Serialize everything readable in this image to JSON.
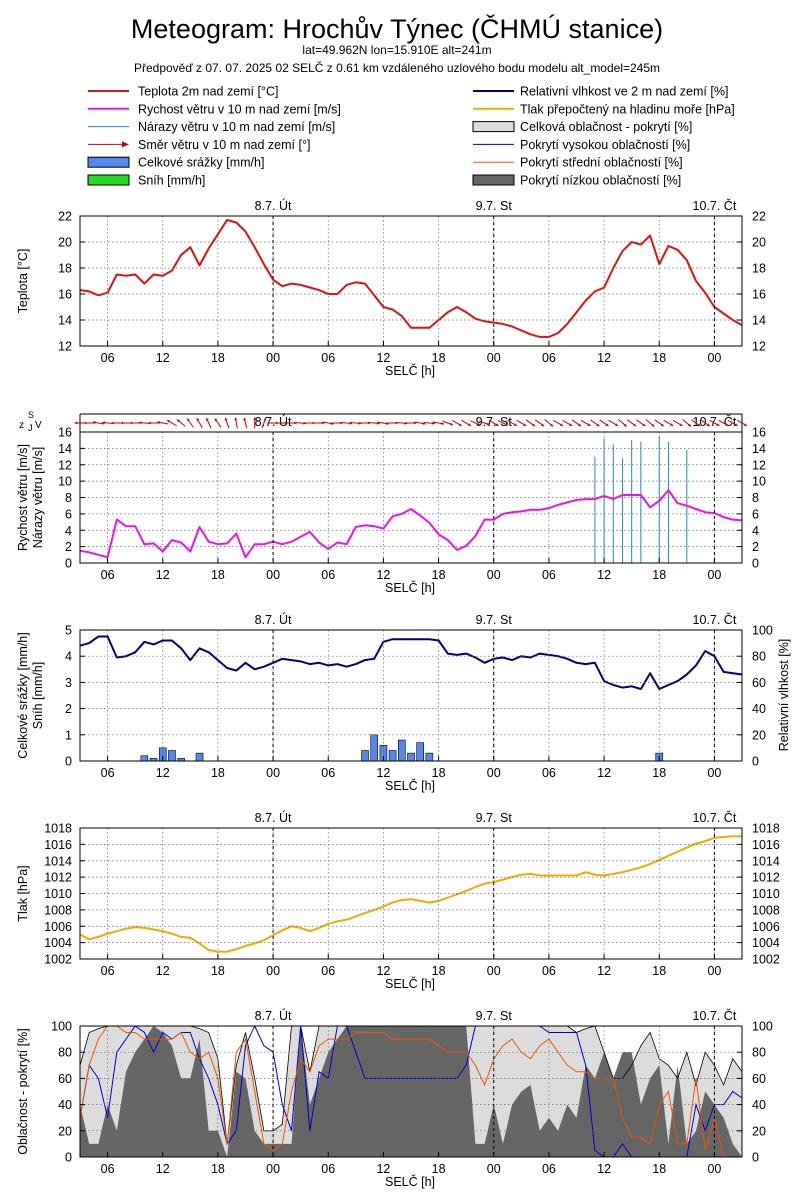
{
  "header": {
    "title": "Meteogram: Hrochův Týnec (ČHMÚ stanice)",
    "coords": "lat=49.962N lon=15.910E alt=241m",
    "forecast": "Předpověď z 07. 07. 2025 02 SELČ z 0.61 km vzdáleného uzlového bodu modelu alt_model=245m"
  },
  "colors": {
    "temp": "#dd1111",
    "wind": "#ee11ee",
    "gust": "#2288cc",
    "winddir": "#cc0000",
    "precip_fill": "#5588ee",
    "snow_fill": "#22dd22",
    "rh": "#000077",
    "pressure": "#eeaa00",
    "cloud_total": "#dcdcdc",
    "cloud_high": "#0000cc",
    "cloud_mid": "#ee5500",
    "cloud_low": "#666666"
  },
  "legend": {
    "left": [
      {
        "label": "Teplota 2m nad zemí [°C]",
        "kind": "line",
        "color": "#dd1111"
      },
      {
        "label": "Rychost větru v 10 m nad zemí [m/s]",
        "kind": "line",
        "color": "#ee11ee"
      },
      {
        "label": "Nárazy větru v 10 m nad zemí [m/s]",
        "kind": "thin",
        "color": "#2288cc"
      },
      {
        "label": "Směr větru v 10 m nad zemí [°]",
        "kind": "arrow",
        "color": "#cc0000"
      },
      {
        "label": "Celkové srážky [mm/h]",
        "kind": "box",
        "color": "#5588ee"
      },
      {
        "label": "Sníh [mm/h]",
        "kind": "box",
        "color": "#22dd22"
      }
    ],
    "right": [
      {
        "label": "Relativní vlhkost ve 2 m nad zemí [%]",
        "kind": "line",
        "color": "#000077"
      },
      {
        "label": "Tlak přepočtený na hladinu moře [hPa]",
        "kind": "line",
        "color": "#eeaa00"
      },
      {
        "label": "Celková oblačnost - pokrytí [%]",
        "kind": "box",
        "color": "#dcdcdc"
      },
      {
        "label": "Pokrytí vysokou oblačností [%]",
        "kind": "thin",
        "color": "#0000cc"
      },
      {
        "label": "Pokrytí střední oblačností [%]",
        "kind": "thin",
        "color": "#ee5500"
      },
      {
        "label": "Pokrytí nízkou oblačností [%]",
        "kind": "box",
        "color": "#666666"
      }
    ]
  },
  "axis": {
    "xlabel": "SELČ [h]",
    "hour_ticks": [
      "06",
      "12",
      "18",
      "00",
      "06",
      "12",
      "18",
      "00",
      "06",
      "12",
      "18",
      "00"
    ],
    "day_labels": [
      "8.7. Út",
      "9.7. St",
      "10.7. Čt"
    ],
    "compass": {
      "z": "z",
      "j": "J",
      "v": "V",
      "s": "S"
    }
  },
  "chart_data": [
    {
      "type": "line",
      "name": "temperature",
      "ylabel": "Teplota [°C]",
      "ylim": [
        12,
        22
      ],
      "yticks": [
        "12",
        "14",
        "16",
        "18",
        "20",
        "22"
      ],
      "x": [
        0,
        1,
        2,
        3,
        4,
        5,
        6,
        7,
        8,
        9,
        10,
        11,
        12,
        13,
        14,
        15,
        16,
        17,
        18,
        19,
        20,
        21,
        22,
        23,
        24,
        25,
        26,
        27,
        28,
        29,
        30,
        31,
        32,
        33,
        34,
        35,
        36,
        37,
        38,
        39,
        40,
        41,
        42,
        43,
        44,
        45,
        46,
        47,
        48,
        49,
        50,
        51,
        52,
        53,
        54,
        55,
        56,
        57,
        58,
        59,
        60,
        61,
        62,
        63,
        64,
        65,
        66,
        67,
        68,
        69,
        70,
        71,
        72
      ],
      "values": [
        16.3,
        16.2,
        15.9,
        16.1,
        17.5,
        17.4,
        17.5,
        16.8,
        17.5,
        17.4,
        17.8,
        19.0,
        19.6,
        18.2,
        19.5,
        20.6,
        21.7,
        21.5,
        20.8,
        19.6,
        18.3,
        17.1,
        16.6,
        16.8,
        16.7,
        16.5,
        16.3,
        16.0,
        16.0,
        16.7,
        16.9,
        16.8,
        15.9,
        15.0,
        14.8,
        14.3,
        13.4,
        13.4,
        13.4,
        14.0,
        14.6,
        15.0,
        14.6,
        14.1,
        13.9,
        13.8,
        13.7,
        13.5,
        13.2,
        12.9,
        12.7,
        12.7,
        13.0,
        13.7,
        14.6,
        15.5,
        16.2,
        16.5,
        18.0,
        19.3,
        20.0,
        19.8,
        20.5,
        18.3,
        19.7,
        19.4,
        18.6,
        17.0,
        16.1,
        15.0,
        14.5,
        14.0,
        13.6
      ]
    },
    {
      "type": "line",
      "name": "wind",
      "ylabel": "Rychost větru [m/s]",
      "ylabel2": "Nárazy větru [m/s]",
      "ylim": [
        0,
        16
      ],
      "yticks": [
        "0",
        "2",
        "4",
        "6",
        "8",
        "10",
        "12",
        "14",
        "16"
      ],
      "x": [
        0,
        1,
        2,
        3,
        4,
        5,
        6,
        7,
        8,
        9,
        10,
        11,
        12,
        13,
        14,
        15,
        16,
        17,
        18,
        19,
        20,
        21,
        22,
        23,
        24,
        25,
        26,
        27,
        28,
        29,
        30,
        31,
        32,
        33,
        34,
        35,
        36,
        37,
        38,
        39,
        40,
        41,
        42,
        43,
        44,
        45,
        46,
        47,
        48,
        49,
        50,
        51,
        52,
        53,
        54,
        55,
        56,
        57,
        58,
        59,
        60,
        61,
        62,
        63,
        64,
        65,
        66,
        67,
        68,
        69,
        70,
        71,
        72
      ],
      "values": [
        1.5,
        1.3,
        1.0,
        0.7,
        5.3,
        4.5,
        4.5,
        2.3,
        2.4,
        1.4,
        2.8,
        2.5,
        1.4,
        4.4,
        2.6,
        2.3,
        2.4,
        3.6,
        0.7,
        2.3,
        2.3,
        2.6,
        2.3,
        2.6,
        3.2,
        3.8,
        2.5,
        1.7,
        2.5,
        2.3,
        4.4,
        4.6,
        4.5,
        4.2,
        5.7,
        6.0,
        6.6,
        5.8,
        4.9,
        3.5,
        2.8,
        1.6,
        2.1,
        3.3,
        5.3,
        5.3,
        6.0,
        6.2,
        6.3,
        6.5,
        6.5,
        6.7,
        7.1,
        7.4,
        7.7,
        7.8,
        7.8,
        8.2,
        7.8,
        8.3,
        8.3,
        8.3,
        6.8,
        7.6,
        8.9,
        7.3,
        7.0,
        6.6,
        6.2,
        6.1,
        5.6,
        5.3,
        5.2
      ],
      "gusts": [
        {
          "x": 56,
          "v": 13
        },
        {
          "x": 57,
          "v": 15.2
        },
        {
          "x": 58,
          "v": 14.5
        },
        {
          "x": 59,
          "v": 12.8
        },
        {
          "x": 60,
          "v": 15
        },
        {
          "x": 61,
          "v": 14.8
        },
        {
          "x": 63,
          "v": 15.5
        },
        {
          "x": 64,
          "v": 14.8
        },
        {
          "x": 66,
          "v": 13.8
        }
      ],
      "wind_direction_deg": [
        90,
        90,
        100,
        95,
        90,
        90,
        90,
        95,
        90,
        100,
        120,
        130,
        145,
        150,
        155,
        145,
        160,
        170,
        165,
        180,
        200,
        270,
        270,
        270,
        275,
        270,
        270,
        280,
        270,
        275,
        275,
        270,
        275,
        280,
        270,
        275,
        270,
        280,
        275,
        280,
        290,
        300,
        300,
        295,
        290,
        300,
        295,
        300,
        300,
        305,
        305,
        310,
        300,
        300,
        305,
        300,
        305,
        305,
        300,
        310,
        305,
        305,
        310,
        305,
        300,
        300,
        310,
        305,
        305,
        300,
        300,
        300,
        300
      ]
    },
    {
      "type": "bar",
      "name": "precipitation",
      "ylabel": "Celkové srážky [mm/h]",
      "ylabel2": "Sníh [mm/h]",
      "ylim": [
        0,
        5
      ],
      "yticks": [
        "0",
        "1",
        "2",
        "3",
        "4",
        "5"
      ],
      "x": [
        7,
        8,
        9,
        10,
        11,
        13,
        31,
        32,
        33,
        34,
        35,
        36,
        37,
        38,
        63
      ],
      "values": [
        0.2,
        0.1,
        0.5,
        0.4,
        0.1,
        0.3,
        0.4,
        1.0,
        0.6,
        0.4,
        0.8,
        0.3,
        0.7,
        0.3,
        0.3
      ],
      "snow": []
    },
    {
      "type": "line",
      "name": "relative_humidity",
      "ylabel": "Relativní vlhkost [%]",
      "ylim": [
        0,
        100
      ],
      "yticks": [
        "0",
        "20",
        "40",
        "60",
        "80",
        "100"
      ],
      "x": [
        0,
        1,
        2,
        3,
        4,
        5,
        6,
        7,
        8,
        9,
        10,
        11,
        12,
        13,
        14,
        15,
        16,
        17,
        18,
        19,
        20,
        21,
        22,
        23,
        24,
        25,
        26,
        27,
        28,
        29,
        30,
        31,
        32,
        33,
        34,
        35,
        36,
        37,
        38,
        39,
        40,
        41,
        42,
        43,
        44,
        45,
        46,
        47,
        48,
        49,
        50,
        51,
        52,
        53,
        54,
        55,
        56,
        57,
        58,
        59,
        60,
        61,
        62,
        63,
        64,
        65,
        66,
        67,
        68,
        69,
        70,
        71,
        72
      ],
      "values": [
        88,
        90,
        95,
        95,
        79,
        80,
        83,
        91,
        89,
        92,
        92,
        86,
        77,
        86,
        83,
        77,
        71,
        69,
        75,
        70,
        72,
        75,
        78,
        77,
        76,
        74,
        75,
        73,
        74,
        72,
        74,
        77,
        78,
        91,
        93,
        93,
        93,
        93,
        93,
        92,
        82,
        81,
        82,
        79,
        75,
        78,
        79,
        77,
        80,
        79,
        82,
        81,
        80,
        78,
        75,
        74,
        75,
        61,
        58,
        56,
        57,
        55,
        67,
        55,
        58,
        61,
        66,
        73,
        84,
        80,
        68,
        67,
        66
      ]
    },
    {
      "type": "line",
      "name": "pressure",
      "ylabel": "Tlak [hPa]",
      "ylim": [
        1002,
        1018
      ],
      "yticks": [
        "1002",
        "1004",
        "1006",
        "1008",
        "1010",
        "1012",
        "1014",
        "1016",
        "1018"
      ],
      "x": [
        0,
        1,
        2,
        3,
        4,
        5,
        6,
        7,
        8,
        9,
        10,
        11,
        12,
        13,
        14,
        15,
        16,
        17,
        18,
        19,
        20,
        21,
        22,
        23,
        24,
        25,
        26,
        27,
        28,
        29,
        30,
        31,
        32,
        33,
        34,
        35,
        36,
        37,
        38,
        39,
        40,
        41,
        42,
        43,
        44,
        45,
        46,
        47,
        48,
        49,
        50,
        51,
        52,
        53,
        54,
        55,
        56,
        57,
        58,
        59,
        60,
        61,
        62,
        63,
        64,
        65,
        66,
        67,
        68,
        69,
        70,
        71,
        72
      ],
      "values": [
        1005.0,
        1004.4,
        1004.7,
        1005.1,
        1005.4,
        1005.7,
        1005.9,
        1005.8,
        1005.6,
        1005.4,
        1005.1,
        1004.7,
        1004.6,
        1003.9,
        1003.1,
        1002.9,
        1002.9,
        1003.2,
        1003.6,
        1003.9,
        1004.3,
        1004.9,
        1005.5,
        1006.0,
        1005.8,
        1005.4,
        1005.8,
        1006.3,
        1006.6,
        1006.8,
        1007.2,
        1007.6,
        1008.0,
        1008.4,
        1008.9,
        1009.2,
        1009.3,
        1009.1,
        1008.9,
        1009.1,
        1009.5,
        1009.9,
        1010.3,
        1010.8,
        1011.2,
        1011.4,
        1011.7,
        1012.0,
        1012.3,
        1012.4,
        1012.2,
        1012.2,
        1012.2,
        1012.2,
        1012.2,
        1012.6,
        1012.3,
        1012.2,
        1012.4,
        1012.6,
        1012.9,
        1013.2,
        1013.6,
        1014.1,
        1014.6,
        1015.1,
        1015.6,
        1016.1,
        1016.4,
        1016.8,
        1016.9,
        1017.0,
        1017.0
      ]
    },
    {
      "type": "area",
      "name": "cloud_cover",
      "ylabel": "Oblačnost - pokrytí [%]",
      "ylim": [
        0,
        100
      ],
      "yticks": [
        "0",
        "20",
        "40",
        "60",
        "80",
        "100"
      ],
      "x": [
        0,
        1,
        2,
        3,
        4,
        5,
        6,
        7,
        8,
        9,
        10,
        11,
        12,
        13,
        14,
        15,
        16,
        17,
        18,
        19,
        20,
        21,
        22,
        23,
        24,
        25,
        26,
        27,
        28,
        29,
        30,
        31,
        32,
        33,
        34,
        35,
        36,
        37,
        38,
        39,
        40,
        41,
        42,
        43,
        44,
        45,
        46,
        47,
        48,
        49,
        50,
        51,
        52,
        53,
        54,
        55,
        56,
        57,
        58,
        59,
        60,
        61,
        62,
        63,
        64,
        65,
        66,
        67,
        68,
        69,
        70,
        71,
        72
      ],
      "series": [
        {
          "name": "total",
          "values": [
            70,
            95,
            98,
            100,
            100,
            100,
            100,
            100,
            100,
            100,
            100,
            100,
            100,
            98,
            95,
            75,
            10,
            70,
            95,
            60,
            20,
            20,
            25,
            100,
            100,
            65,
            100,
            100,
            100,
            100,
            100,
            100,
            100,
            100,
            100,
            100,
            100,
            100,
            100,
            100,
            100,
            100,
            100,
            100,
            100,
            100,
            100,
            100,
            100,
            100,
            100,
            100,
            100,
            100,
            95,
            98,
            100,
            80,
            60,
            60,
            70,
            85,
            95,
            75,
            70,
            60,
            80,
            55,
            80,
            70,
            55,
            75,
            65
          ]
        },
        {
          "name": "low",
          "values": [
            40,
            10,
            10,
            40,
            20,
            65,
            80,
            90,
            100,
            95,
            85,
            60,
            60,
            90,
            20,
            20,
            0,
            65,
            60,
            20,
            10,
            10,
            10,
            10,
            100,
            40,
            60,
            80,
            90,
            100,
            100,
            100,
            100,
            100,
            100,
            100,
            100,
            100,
            100,
            100,
            100,
            100,
            100,
            10,
            10,
            40,
            10,
            40,
            50,
            55,
            20,
            30,
            20,
            40,
            30,
            70,
            60,
            80,
            60,
            80,
            80,
            40,
            60,
            70,
            10,
            70,
            10,
            20,
            50,
            40,
            30,
            10,
            0
          ]
        },
        {
          "name": "high",
          "values": [
            30,
            70,
            60,
            30,
            80,
            90,
            100,
            95,
            80,
            95,
            90,
            95,
            95,
            75,
            60,
            40,
            10,
            20,
            85,
            100,
            85,
            80,
            40,
            20,
            100,
            20,
            65,
            60,
            100,
            100,
            80,
            60,
            60,
            60,
            60,
            60,
            60,
            60,
            60,
            60,
            60,
            60,
            70,
            100,
            100,
            100,
            100,
            100,
            100,
            100,
            100,
            95,
            95,
            95,
            95,
            70,
            5,
            0,
            0,
            10,
            0,
            0,
            0,
            0,
            0,
            0,
            0,
            40,
            20,
            40,
            40,
            50,
            45
          ]
        },
        {
          "name": "mid",
          "values": [
            30,
            70,
            90,
            100,
            100,
            95,
            95,
            90,
            90,
            90,
            90,
            95,
            80,
            75,
            80,
            60,
            10,
            80,
            90,
            50,
            10,
            5,
            10,
            50,
            75,
            65,
            85,
            90,
            90,
            90,
            95,
            95,
            95,
            95,
            90,
            90,
            90,
            90,
            90,
            85,
            80,
            80,
            80,
            70,
            55,
            75,
            85,
            90,
            80,
            75,
            85,
            90,
            80,
            70,
            65,
            65,
            60,
            60,
            60,
            30,
            15,
            15,
            10,
            40,
            50,
            10,
            10,
            60,
            5,
            30,
            0,
            0,
            0
          ]
        }
      ]
    }
  ]
}
